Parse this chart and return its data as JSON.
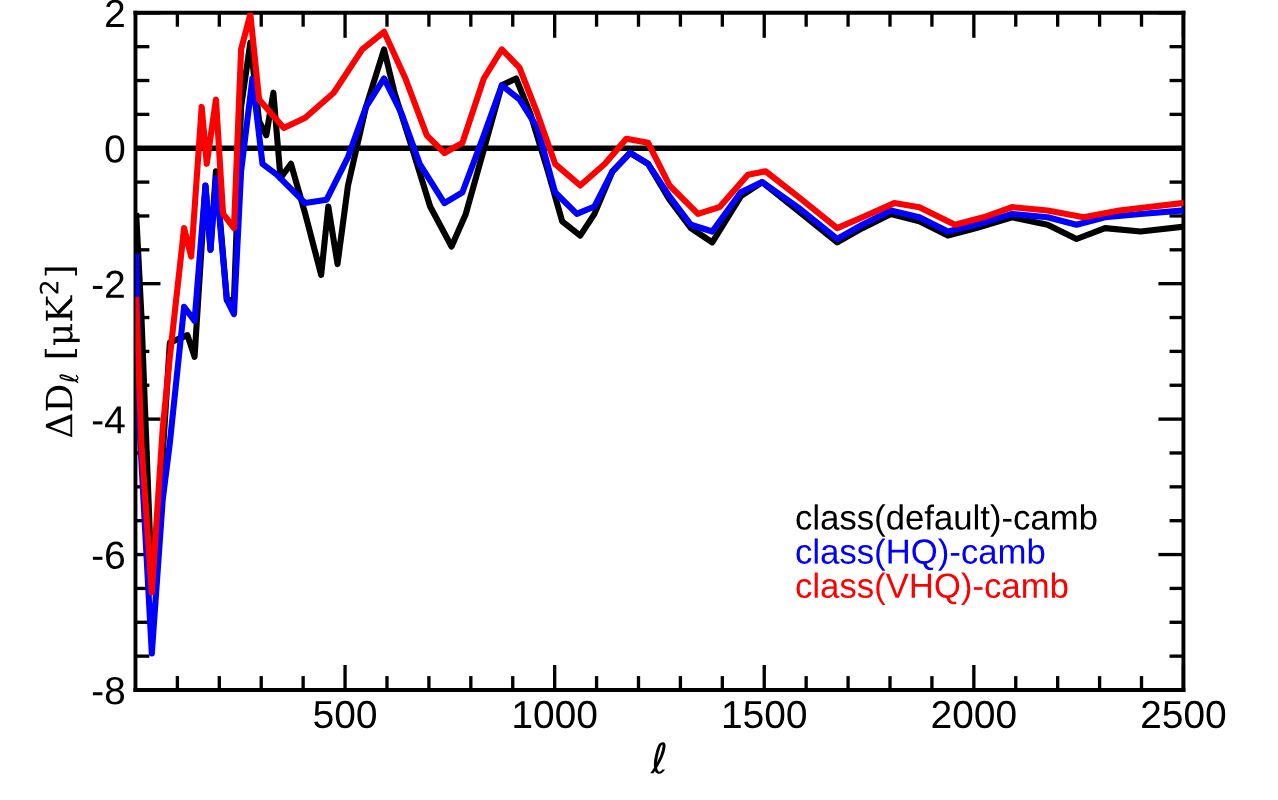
{
  "chart_data": {
    "type": "line",
    "xlabel": "ℓ",
    "ylabel": "ΔD$_{ℓ}$ [μK$^{2}$]",
    "xlim": [
      0,
      2500
    ],
    "ylim": [
      -8,
      2
    ],
    "xticks": [
      {
        "value": 100,
        "label": null
      },
      {
        "value": 200,
        "label": null
      },
      {
        "value": 300,
        "label": null
      },
      {
        "value": 400,
        "label": null
      },
      500,
      {
        "value": 600,
        "label": null
      },
      {
        "value": 700,
        "label": null
      },
      {
        "value": 800,
        "label": null
      },
      {
        "value": 900,
        "label": null
      },
      1000,
      {
        "value": 1100,
        "label": null
      },
      {
        "value": 1200,
        "label": null
      },
      {
        "value": 1300,
        "label": null
      },
      {
        "value": 1400,
        "label": null
      },
      1500,
      {
        "value": 1600,
        "label": null
      },
      {
        "value": 1700,
        "label": null
      },
      {
        "value": 1800,
        "label": null
      },
      {
        "value": 1900,
        "label": null
      },
      2000,
      {
        "value": 2100,
        "label": null
      },
      {
        "value": 2200,
        "label": null
      },
      {
        "value": 2300,
        "label": null
      },
      {
        "value": 2400,
        "label": null
      },
      2500
    ],
    "yticks": [
      -8,
      {
        "value": -7.5,
        "label": null
      },
      {
        "value": -7,
        "label": null
      },
      {
        "value": -6.5,
        "label": null
      },
      -6,
      {
        "value": -5.5,
        "label": null
      },
      {
        "value": -5,
        "label": null
      },
      {
        "value": -4.5,
        "label": null
      },
      -4,
      {
        "value": -3.5,
        "label": null
      },
      {
        "value": -3,
        "label": null
      },
      {
        "value": -2.5,
        "label": null
      },
      -2,
      {
        "value": -1.5,
        "label": null
      },
      {
        "value": -1,
        "label": null
      },
      {
        "value": -0.5,
        "label": null
      },
      0,
      {
        "value": 0.5,
        "label": null
      },
      {
        "value": 1,
        "label": null
      },
      {
        "value": 1.5,
        "label": null
      },
      2
    ],
    "grid": false,
    "legend": "bottom right",
    "line_style": "solid",
    "marker": "none",
    "ref_lines": [
      {
        "axis": "y",
        "value": 0,
        "color": "#000000"
      }
    ],
    "series": [
      {
        "name": "class(default)-camb",
        "color": "#000000",
        "x": [
          2,
          14,
          39,
          56,
          82,
          124,
          141,
          167,
          179,
          192,
          218,
          235,
          252,
          274,
          295,
          312,
          329,
          346,
          371,
          405,
          443,
          460,
          482,
          507,
          550,
          593,
          618,
          661,
          703,
          754,
          788,
          831,
          874,
          908,
          942,
          984,
          1018,
          1061,
          1095,
          1138,
          1180,
          1223,
          1274,
          1325,
          1376,
          1444,
          1495,
          1580,
          1674,
          1734,
          1802,
          1870,
          1938,
          2006,
          2091,
          2176,
          2245,
          2313,
          2398,
          2497
        ],
        "values": [
          -1.0,
          -2.45,
          -6.45,
          -5.4,
          -2.87,
          -2.76,
          -3.08,
          -0.55,
          -1.5,
          -0.34,
          -2.24,
          -2.24,
          0.61,
          1.56,
          0.4,
          0.19,
          0.82,
          -0.44,
          -0.23,
          -0.97,
          -1.87,
          -0.86,
          -1.71,
          -0.55,
          0.61,
          1.46,
          0.82,
          -0.02,
          -0.86,
          -1.45,
          -0.97,
          -0.02,
          0.93,
          1.03,
          0.51,
          -0.34,
          -1.08,
          -1.29,
          -0.97,
          -0.34,
          -0.07,
          -0.23,
          -0.76,
          -1.18,
          -1.39,
          -0.71,
          -0.5,
          -0.92,
          -1.39,
          -1.18,
          -0.97,
          -1.08,
          -1.29,
          -1.18,
          -1.02,
          -1.13,
          -1.34,
          -1.18,
          -1.23,
          -1.16
        ]
      },
      {
        "name": "class(HQ)-camb",
        "color": "#0000ff",
        "x": [
          2,
          10,
          39,
          65,
          82,
          116,
          141,
          167,
          179,
          192,
          218,
          235,
          252,
          279,
          303,
          337,
          405,
          456,
          507,
          550,
          593,
          635,
          678,
          737,
          780,
          831,
          874,
          916,
          959,
          1001,
          1053,
          1095,
          1138,
          1180,
          1223,
          1274,
          1325,
          1376,
          1444,
          1495,
          1580,
          1674,
          1734,
          1802,
          1870,
          1938,
          2006,
          2091,
          2176,
          2245,
          2313,
          2398,
          2497
        ],
        "values": [
          -1.6,
          -4.14,
          -7.46,
          -5.19,
          -4.35,
          -2.34,
          -2.55,
          -0.55,
          -1.5,
          -0.44,
          -2.24,
          -2.45,
          -0.34,
          1.03,
          -0.23,
          -0.39,
          -0.81,
          -0.76,
          -0.13,
          0.61,
          1.03,
          0.51,
          -0.23,
          -0.81,
          -0.65,
          0.19,
          0.93,
          0.72,
          0.3,
          -0.65,
          -0.97,
          -0.86,
          -0.34,
          -0.07,
          -0.23,
          -0.71,
          -1.13,
          -1.23,
          -0.65,
          -0.5,
          -0.87,
          -1.34,
          -1.13,
          -0.92,
          -1.02,
          -1.23,
          -1.13,
          -0.97,
          -1.02,
          -1.13,
          -1.02,
          -0.97,
          -0.92
        ]
      },
      {
        "name": "class(VHQ)-camb",
        "color": "#ff0000",
        "x": [
          2,
          14,
          39,
          65,
          82,
          116,
          133,
          158,
          170,
          192,
          209,
          235,
          252,
          274,
          295,
          354,
          405,
          473,
          541,
          593,
          644,
          695,
          737,
          780,
          831,
          874,
          916,
          959,
          1001,
          1061,
          1120,
          1171,
          1223,
          1274,
          1342,
          1393,
          1461,
          1503,
          1580,
          1674,
          1734,
          1810,
          1870,
          1955,
          2023,
          2091,
          2176,
          2262,
          2347,
          2497
        ],
        "values": [
          -2.24,
          -4.35,
          -6.56,
          -4.14,
          -3.08,
          -1.18,
          -1.6,
          0.61,
          -0.23,
          0.72,
          -0.97,
          -1.18,
          1.46,
          1.98,
          0.72,
          0.3,
          0.45,
          0.82,
          1.46,
          1.72,
          1.03,
          0.19,
          -0.07,
          0.08,
          1.03,
          1.46,
          1.19,
          0.51,
          -0.23,
          -0.55,
          -0.23,
          0.14,
          0.08,
          -0.55,
          -0.97,
          -0.87,
          -0.39,
          -0.34,
          -0.71,
          -1.18,
          -1.02,
          -0.81,
          -0.87,
          -1.13,
          -1.02,
          -0.87,
          -0.92,
          -1.02,
          -0.92,
          -0.81
        ]
      }
    ]
  }
}
